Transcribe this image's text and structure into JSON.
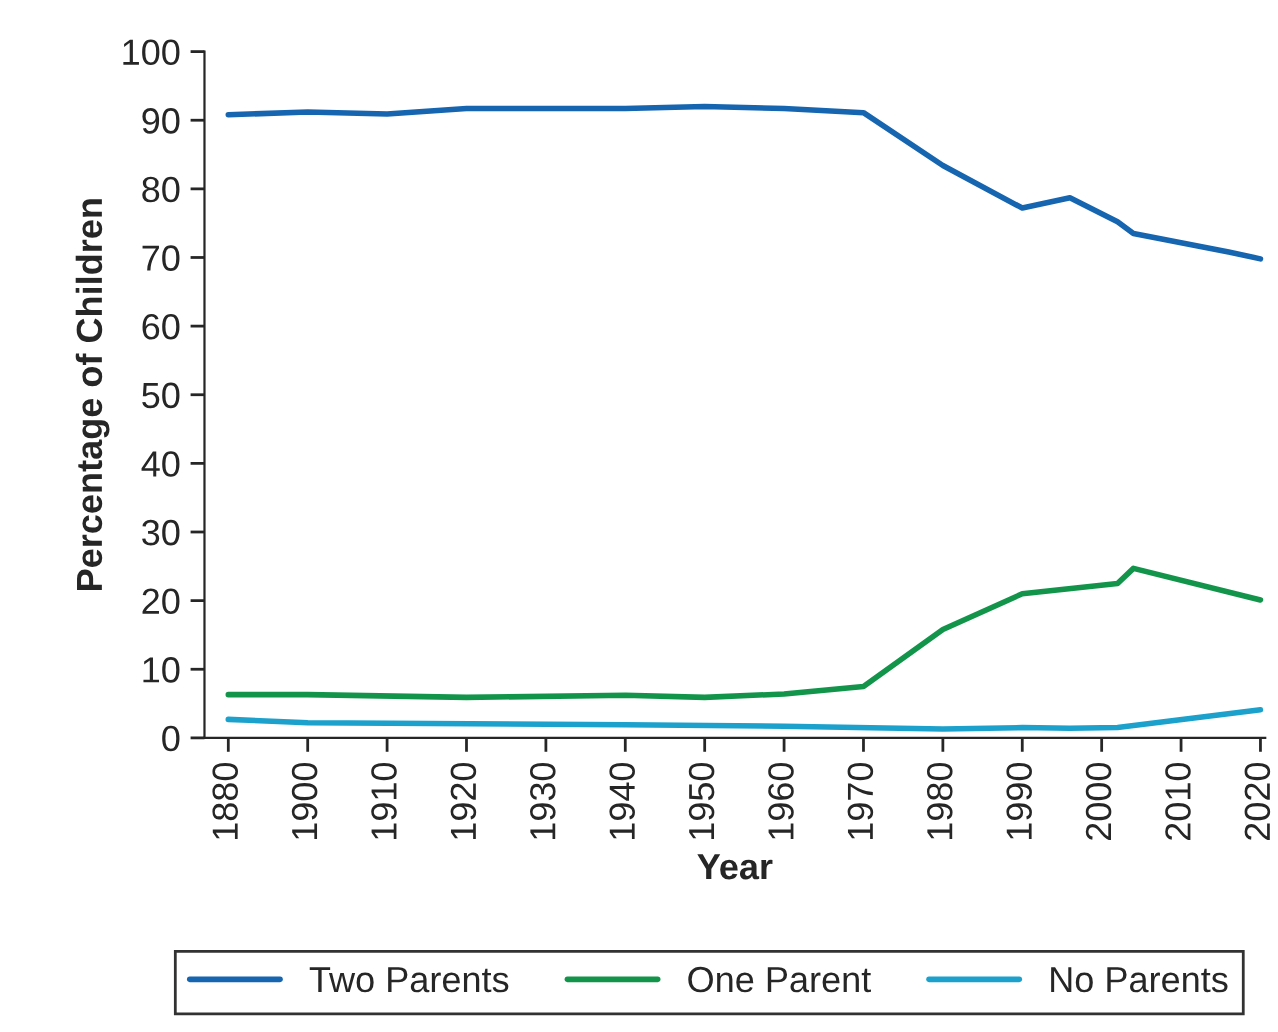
{
  "chart_data": {
    "type": "line",
    "xlabel": "Year",
    "ylabel": "Percentage of Children",
    "ylim": [
      0,
      100
    ],
    "yticks": [
      0,
      10,
      20,
      30,
      40,
      50,
      60,
      70,
      80,
      90,
      100
    ],
    "categories": [
      "1880",
      null,
      null,
      null,
      null,
      "1900",
      null,
      null,
      null,
      null,
      "1910",
      null,
      null,
      null,
      null,
      "1920",
      null,
      null,
      null,
      null,
      "1930",
      null,
      null,
      null,
      null,
      "1940",
      null,
      null,
      null,
      null,
      "1950",
      null,
      null,
      null,
      null,
      "1960",
      null,
      null,
      null,
      null,
      "1970",
      null,
      null,
      null,
      null,
      "1980",
      null,
      null,
      null,
      null,
      "1990",
      null,
      null,
      null,
      null,
      "2000",
      null,
      null,
      null,
      null,
      "2010",
      null,
      null,
      null,
      null,
      "2020"
    ],
    "grid": false,
    "legend": "bottom",
    "marker": "none",
    "line_style": "solid",
    "series": [
      {
        "name": "Two Parents",
        "color": "#1565b0",
        "values": [
          90.8,
          null,
          null,
          null,
          null,
          91.2,
          null,
          null,
          null,
          null,
          90.9,
          null,
          null,
          null,
          null,
          91.7,
          null,
          null,
          null,
          null,
          null,
          null,
          null,
          null,
          null,
          91.7,
          null,
          null,
          null,
          null,
          92.0,
          null,
          null,
          null,
          null,
          91.7,
          null,
          null,
          null,
          null,
          91.1,
          null,
          null,
          null,
          null,
          83.4,
          null,
          null,
          null,
          null,
          77.2,
          null,
          null,
          78.7,
          null,
          null,
          75.2,
          73.5,
          null,
          null,
          null,
          null,
          null,
          70.8,
          null,
          69.8
        ]
      },
      {
        "name": "One Parent",
        "color": "#12954a",
        "values": [
          6.3,
          null,
          null,
          null,
          null,
          6.3,
          null,
          null,
          null,
          null,
          null,
          null,
          null,
          null,
          null,
          5.9,
          null,
          null,
          null,
          null,
          null,
          null,
          null,
          null,
          null,
          6.2,
          null,
          null,
          null,
          null,
          5.9,
          null,
          null,
          null,
          null,
          6.4,
          null,
          null,
          null,
          null,
          7.5,
          null,
          null,
          null,
          null,
          15.8,
          null,
          null,
          null,
          null,
          21.0,
          null,
          null,
          null,
          null,
          null,
          22.5,
          24.7,
          null,
          null,
          null,
          null,
          null,
          null,
          null,
          20.1
        ]
      },
      {
        "name": "No Parents",
        "color": "#1ba1cc",
        "values": [
          2.7,
          null,
          null,
          null,
          null,
          2.2,
          null,
          null,
          null,
          null,
          null,
          null,
          null,
          null,
          null,
          null,
          null,
          null,
          null,
          null,
          null,
          null,
          null,
          null,
          null,
          1.9,
          null,
          null,
          null,
          null,
          null,
          null,
          null,
          null,
          null,
          1.7,
          null,
          null,
          null,
          null,
          null,
          null,
          null,
          null,
          null,
          1.3,
          null,
          null,
          null,
          null,
          1.5,
          null,
          null,
          1.4,
          null,
          null,
          1.5,
          null,
          null,
          null,
          null,
          null,
          null,
          null,
          null,
          4.1
        ]
      }
    ]
  }
}
